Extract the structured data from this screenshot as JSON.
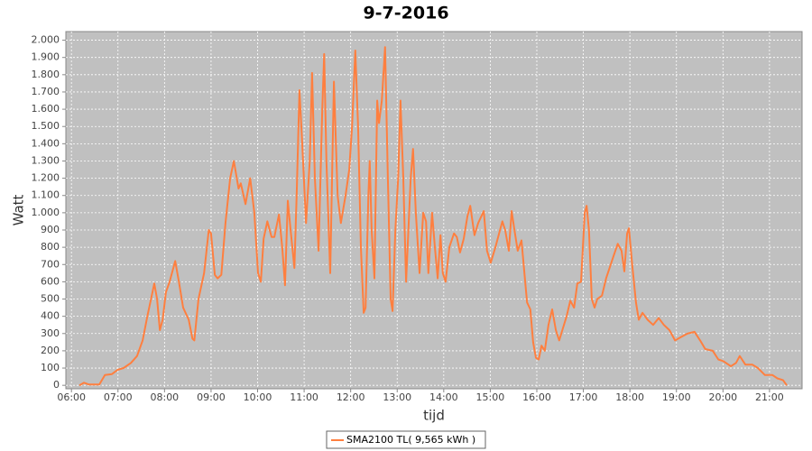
{
  "chart_data": {
    "type": "line",
    "title": "9-7-2016",
    "x_label": "tijd",
    "y_label": "Watt",
    "x": [
      6.17,
      6.27,
      6.37,
      6.6,
      6.72,
      6.87,
      6.99,
      7.12,
      7.28,
      7.41,
      7.53,
      7.63,
      7.71,
      7.78,
      7.84,
      7.9,
      7.96,
      8.03,
      8.11,
      8.23,
      8.31,
      8.4,
      8.52,
      8.6,
      8.64,
      8.73,
      8.85,
      8.95,
      9.0,
      9.08,
      9.14,
      9.22,
      9.31,
      9.41,
      9.49,
      9.59,
      9.64,
      9.74,
      9.84,
      9.93,
      10.01,
      10.07,
      10.13,
      10.21,
      10.3,
      10.36,
      10.46,
      10.53,
      10.59,
      10.65,
      10.71,
      10.79,
      10.84,
      10.9,
      10.96,
      11.04,
      11.12,
      11.17,
      11.23,
      11.31,
      11.39,
      11.43,
      11.48,
      11.56,
      11.64,
      11.72,
      11.79,
      11.89,
      11.97,
      12.03,
      12.1,
      12.16,
      12.22,
      12.28,
      12.32,
      12.38,
      12.41,
      12.45,
      12.51,
      12.57,
      12.61,
      12.67,
      12.74,
      12.8,
      12.86,
      12.9,
      12.96,
      13.02,
      13.07,
      13.13,
      13.19,
      13.29,
      13.34,
      13.4,
      13.48,
      13.56,
      13.62,
      13.67,
      13.75,
      13.81,
      13.87,
      13.93,
      13.98,
      14.04,
      14.12,
      14.22,
      14.28,
      14.35,
      14.43,
      14.51,
      14.57,
      14.66,
      14.74,
      14.86,
      14.93,
      15.01,
      15.11,
      15.21,
      15.26,
      15.32,
      15.4,
      15.46,
      15.52,
      15.59,
      15.67,
      15.75,
      15.79,
      15.86,
      15.92,
      15.98,
      16.04,
      16.1,
      16.17,
      16.25,
      16.33,
      16.41,
      16.48,
      16.56,
      16.64,
      16.72,
      16.8,
      16.87,
      16.95,
      17.03,
      17.07,
      17.12,
      17.18,
      17.24,
      17.3,
      17.4,
      17.49,
      17.65,
      17.74,
      17.82,
      17.88,
      17.94,
      17.98,
      18.05,
      18.13,
      18.19,
      18.27,
      18.38,
      18.5,
      18.62,
      18.73,
      18.85,
      18.97,
      19.1,
      19.24,
      19.39,
      19.51,
      19.62,
      19.78,
      19.9,
      20.01,
      20.17,
      20.28,
      20.36,
      20.48,
      20.63,
      20.75,
      20.9,
      21.06,
      21.17,
      21.29,
      21.37
    ],
    "series": [
      {
        "name": "SMA2100 TL( 9,565 kWh )",
        "color": "#ff7f3f",
        "values": [
          0,
          15,
          5,
          5,
          60,
          65,
          90,
          100,
          130,
          170,
          260,
          400,
          500,
          590,
          500,
          320,
          380,
          540,
          600,
          720,
          600,
          450,
          380,
          270,
          260,
          500,
          650,
          900,
          880,
          640,
          620,
          640,
          940,
          1200,
          1300,
          1140,
          1170,
          1050,
          1200,
          1000,
          650,
          600,
          850,
          950,
          860,
          860,
          990,
          800,
          580,
          1070,
          900,
          680,
          1100,
          1710,
          1400,
          940,
          1300,
          1810,
          1200,
          780,
          1600,
          1920,
          1300,
          650,
          1760,
          1100,
          940,
          1100,
          1250,
          1500,
          1940,
          1500,
          800,
          420,
          450,
          1100,
          1300,
          900,
          620,
          1650,
          1520,
          1650,
          1960,
          1200,
          500,
          430,
          900,
          1200,
          1650,
          1200,
          600,
          1200,
          1370,
          1000,
          650,
          1000,
          950,
          650,
          1000,
          800,
          620,
          870,
          650,
          600,
          800,
          880,
          860,
          770,
          850,
          980,
          1040,
          870,
          940,
          1010,
          780,
          710,
          800,
          900,
          950,
          900,
          780,
          1010,
          900,
          780,
          840,
          600,
          480,
          440,
          250,
          160,
          150,
          230,
          200,
          350,
          440,
          320,
          260,
          330,
          400,
          490,
          450,
          590,
          600,
          1000,
          1040,
          900,
          500,
          450,
          500,
          520,
          620,
          750,
          820,
          780,
          660,
          880,
          910,
          700,
          480,
          380,
          420,
          380,
          350,
          390,
          350,
          320,
          260,
          280,
          300,
          310,
          260,
          210,
          200,
          150,
          140,
          110,
          130,
          170,
          120,
          120,
          100,
          60,
          60,
          40,
          30,
          0
        ]
      }
    ],
    "xlim": [
      5.88,
      21.7
    ],
    "xticks": [
      {
        "value": 6,
        "label": "06:00"
      },
      {
        "value": 7,
        "label": "07:00"
      },
      {
        "value": 8,
        "label": "08:00"
      },
      {
        "value": 9,
        "label": "09:00"
      },
      {
        "value": 10,
        "label": "10:00"
      },
      {
        "value": 11,
        "label": "11:00"
      },
      {
        "value": 12,
        "label": "12:00"
      },
      {
        "value": 13,
        "label": "13:00"
      },
      {
        "value": 14,
        "label": "14:00"
      },
      {
        "value": 15,
        "label": "15:00"
      },
      {
        "value": 16,
        "label": "16:00"
      },
      {
        "value": 17,
        "label": "17:00"
      },
      {
        "value": 18,
        "label": "18:00"
      },
      {
        "value": 19,
        "label": "19:00"
      },
      {
        "value": 20,
        "label": "20:00"
      },
      {
        "value": 21,
        "label": "21:00"
      }
    ],
    "ylim": [
      -20,
      2050
    ],
    "yticks": [
      0,
      100,
      200,
      300,
      400,
      500,
      600,
      700,
      800,
      900,
      {
        "value": 1000,
        "label": "1.000"
      },
      {
        "value": 1100,
        "label": "1.100"
      },
      {
        "value": 1200,
        "label": "1.200"
      },
      {
        "value": 1300,
        "label": "1.300"
      },
      {
        "value": 1400,
        "label": "1.400"
      },
      {
        "value": 1500,
        "label": "1.500"
      },
      {
        "value": 1600,
        "label": "1.600"
      },
      {
        "value": 1700,
        "label": "1.700"
      },
      {
        "value": 1800,
        "label": "1.800"
      },
      {
        "value": 1900,
        "label": "1.900"
      },
      {
        "value": 2000,
        "label": "2.000"
      }
    ],
    "grid": true,
    "legend": "bottom"
  }
}
